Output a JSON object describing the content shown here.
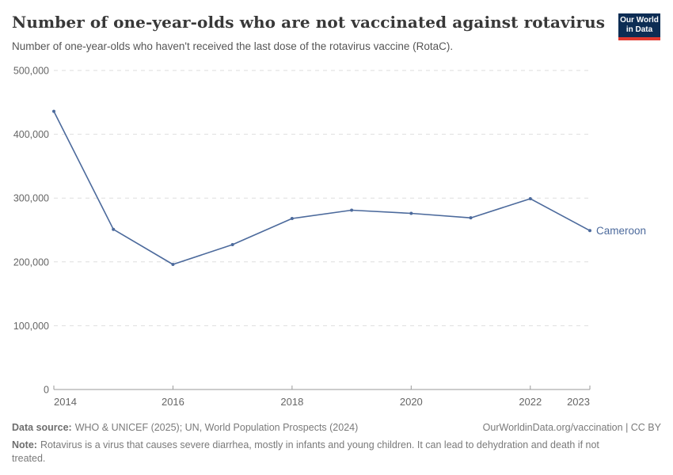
{
  "header": {
    "title": "Number of one-year-olds who are not vaccinated against rotavirus",
    "subtitle": "Number of one-year-olds who haven't received the last dose of the rotavirus vaccine (RotaC).",
    "logo": {
      "line1": "Our World",
      "line2": "in Data",
      "bg_color": "#0d2d54",
      "accent_color": "#e2392f"
    }
  },
  "chart_data": {
    "type": "line",
    "title": "Number of one-year-olds who are not vaccinated against rotavirus",
    "x": [
      2014,
      2015,
      2016,
      2017,
      2018,
      2019,
      2020,
      2021,
      2022,
      2023
    ],
    "series": [
      {
        "name": "Cameroon",
        "color": "#4c6a9c",
        "values": [
          436000,
          251000,
          196000,
          227000,
          268000,
          281000,
          276000,
          269000,
          299000,
          249000
        ]
      }
    ],
    "xlim": [
      2014,
      2023
    ],
    "ylim": [
      0,
      500000
    ],
    "x_tick_labels": [
      "2014",
      "2016",
      "2018",
      "2020",
      "2022",
      "2023"
    ],
    "y_ticks": [
      {
        "value": 0,
        "label": "0"
      },
      {
        "value": 100000,
        "label": "100,000"
      },
      {
        "value": 200000,
        "label": "200,000"
      },
      {
        "value": 300000,
        "label": "300,000"
      },
      {
        "value": 400000,
        "label": "400,000"
      },
      {
        "value": 500000,
        "label": "500,000"
      }
    ],
    "grid": "horizontal-dashed",
    "legend": "entity-label-at-line-end",
    "colors": {
      "gridline": "#dedede",
      "axis": "#9a9a9a",
      "tick_text": "#666666"
    }
  },
  "footer": {
    "source_label": "Data source:",
    "source_text": "WHO & UNICEF (2025); UN, World Population Prospects (2024)",
    "credit": "OurWorldinData.org/vaccination | CC BY",
    "note_label": "Note:",
    "note_text": "Rotavirus is a virus that causes severe diarrhea, mostly in infants and young children. It can lead to dehydration and death if not treated."
  }
}
